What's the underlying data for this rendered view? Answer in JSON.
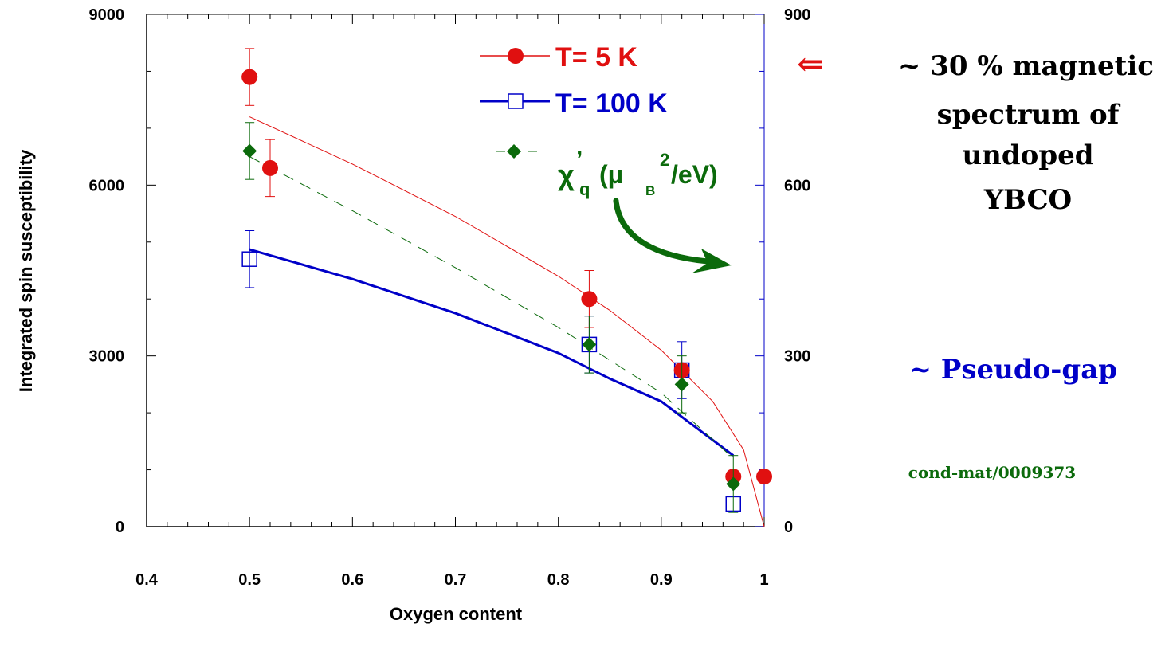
{
  "chart_data": {
    "type": "scatter",
    "xlabel": "Oxygen content",
    "ylabel": "Integrated spin susceptibility",
    "xlim": [
      0.4,
      1.0
    ],
    "ylim": [
      0,
      9000
    ],
    "y2lim": [
      0,
      900
    ],
    "x_ticks": [
      "0.4",
      "0.5",
      "0.6",
      "0.7",
      "0.8",
      "0.9",
      "1"
    ],
    "y_ticks": [
      "0",
      "3000",
      "6000",
      "9000"
    ],
    "y2_ticks": [
      "0",
      "300",
      "600",
      "900"
    ],
    "grid": false,
    "legend_position": "top-right",
    "series": [
      {
        "name": "T= 5 K",
        "color": "#e01010",
        "marker": "filled-circle",
        "axis": "left",
        "points": [
          {
            "x": 0.5,
            "y": 7900,
            "err": 500
          },
          {
            "x": 0.52,
            "y": 6300,
            "err": 500
          },
          {
            "x": 0.83,
            "y": 4000,
            "err": 500
          },
          {
            "x": 0.92,
            "y": 2750,
            "err": 0
          },
          {
            "x": 0.97,
            "y": 880,
            "err": 0
          },
          {
            "x": 1.0,
            "y": 880,
            "err": 0
          }
        ],
        "fit": {
          "style": "thin-solid",
          "x": [
            0.5,
            0.6,
            0.7,
            0.8,
            0.85,
            0.9,
            0.95,
            0.98,
            1.0
          ],
          "y": [
            7200,
            6370,
            5450,
            4400,
            3800,
            3100,
            2200,
            1350,
            0
          ]
        }
      },
      {
        "name": "T= 100 K",
        "color": "#0000c8",
        "marker": "open-square",
        "axis": "left",
        "points": [
          {
            "x": 0.5,
            "y": 4700,
            "err": 500
          },
          {
            "x": 0.83,
            "y": 3200,
            "err": 500
          },
          {
            "x": 0.92,
            "y": 2750,
            "err": 500
          },
          {
            "x": 0.97,
            "y": 400,
            "err": 0
          }
        ],
        "fit": {
          "style": "thick-solid",
          "x": [
            0.5,
            0.6,
            0.7,
            0.8,
            0.85,
            0.9,
            0.97
          ],
          "y": [
            4870,
            4350,
            3750,
            3050,
            2600,
            2200,
            1250
          ]
        }
      },
      {
        "name": "χ'q (μB²/eV)",
        "color": "#0b6a0b",
        "marker": "filled-diamond",
        "axis": "right",
        "points": [
          {
            "x": 0.5,
            "y": 660,
            "err": 50
          },
          {
            "x": 0.83,
            "y": 320,
            "err": 50
          },
          {
            "x": 0.92,
            "y": 250,
            "err": 50
          },
          {
            "x": 0.97,
            "y": 75,
            "err": 50
          }
        ],
        "fit": {
          "style": "dashed",
          "x": [
            0.5,
            0.6,
            0.7,
            0.8,
            0.9,
            0.97
          ],
          "y": [
            650,
            555,
            455,
            350,
            235,
            120
          ]
        }
      }
    ],
    "legend": [
      {
        "label": "T= 5 K",
        "color": "#e01010"
      },
      {
        "label": "T= 100 K",
        "color": "#0000c8"
      }
    ],
    "chi_label": {
      "chi": "χ",
      "prime": "’",
      "q": "q",
      "mu_open": "(μ",
      "B": "B",
      "sq": "2",
      "unit": "/eV)"
    },
    "annotations": {
      "arrow_symbol": "⇐",
      "magnetic_lines": [
        "~ 30 % magnetic",
        "spectrum of",
        "undoped",
        "YBCO"
      ],
      "pseudo_gap": "~ Pseudo-gap",
      "reference": "cond-mat/0009373"
    },
    "colors": {
      "red": "#e01010",
      "blue": "#0000c8",
      "green": "#0b6a0b"
    }
  }
}
